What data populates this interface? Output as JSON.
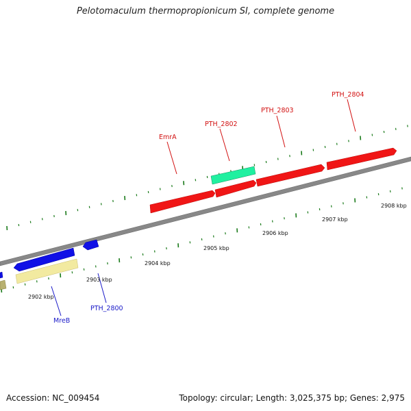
{
  "title": "Pelotomaculum thermopropionicum SI, complete genome",
  "footer": {
    "accession": "Accession: NC_009454",
    "summary": "Topology: circular; Length: 3,025,375 bp; Genes: 2,975"
  },
  "colors": {
    "backbone": "#808080",
    "red": "#f01616",
    "blue": "#1010e6",
    "green": "#20f0a0",
    "khaki": "#f2eaa0",
    "tick": "#1a7a1a",
    "label_red": "#d21010",
    "label_blue": "#1818c8"
  },
  "kbp_labels": [
    "2902 kbp",
    "2903 kbp",
    "2904 kbp",
    "2905 kbp",
    "2906 kbp",
    "2907 kbp",
    "2908 kbp"
  ],
  "gene_labels": [
    {
      "text": "EmrA",
      "color": "red"
    },
    {
      "text": "PTH_2802",
      "color": "red"
    },
    {
      "text": "PTH_2803",
      "color": "red"
    },
    {
      "text": "PTH_2804",
      "color": "red"
    },
    {
      "text": "MreB",
      "color": "blue"
    },
    {
      "text": "PTH_2800",
      "color": "blue"
    }
  ]
}
